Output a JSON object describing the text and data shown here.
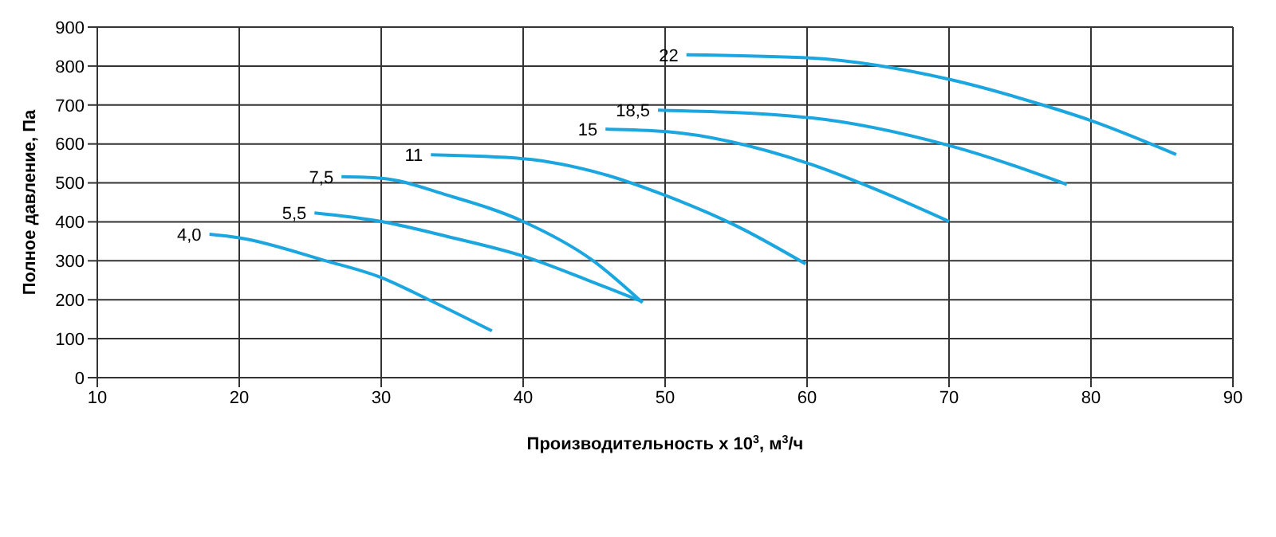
{
  "chart_data": {
    "type": "line",
    "xlabel": "Производительность x 10$^{3}$, м$^{3}$/ч",
    "ylabel": "Полное давление, Па",
    "xlim": [
      10,
      90
    ],
    "xticks": [
      10,
      20,
      30,
      40,
      50,
      60,
      70,
      80,
      90
    ],
    "ylim": [
      0,
      900
    ],
    "yticks": [
      0,
      100,
      200,
      300,
      400,
      500,
      600,
      700,
      800,
      900
    ],
    "grid": true,
    "legend": false,
    "marker": "none",
    "line_style": "solid",
    "series": [
      {
        "name": "4,0",
        "color": "#1ba6e0",
        "x": [
          17.9,
          20,
          26,
          30,
          33.3,
          37.8
        ],
        "values": [
          368,
          359,
          301,
          257,
          201,
          120
        ]
      },
      {
        "name": "5,5",
        "color": "#1ba6e0",
        "x": [
          25.3,
          30,
          34.7,
          40,
          44.5,
          48.4
        ],
        "values": [
          423,
          401,
          362,
          312,
          251,
          195
        ]
      },
      {
        "name": "7,5",
        "color": "#1ba6e0",
        "x": [
          27.2,
          30,
          34.7,
          40,
          44.9,
          48.4
        ],
        "values": [
          516,
          512,
          468,
          401,
          301,
          193
        ]
      },
      {
        "name": "11",
        "color": "#1ba6e0",
        "x": [
          33.5,
          40,
          45.6,
          50,
          55,
          59.9
        ],
        "values": [
          572,
          562,
          523,
          468,
          390,
          292
        ]
      },
      {
        "name": "15",
        "color": "#1ba6e0",
        "x": [
          45.8,
          50,
          60,
          64.8,
          70
        ],
        "values": [
          638,
          632,
          551,
          484,
          401
        ]
      },
      {
        "name": "18,5",
        "color": "#1ba6e0",
        "x": [
          49.5,
          60,
          70,
          78.3
        ],
        "values": [
          687,
          668,
          596,
          496
        ]
      },
      {
        "name": "22",
        "color": "#1ba6e0",
        "x": [
          51.5,
          60,
          70,
          76.6,
          80,
          86
        ],
        "values": [
          829,
          821,
          766,
          700,
          660,
          573
        ]
      }
    ]
  }
}
